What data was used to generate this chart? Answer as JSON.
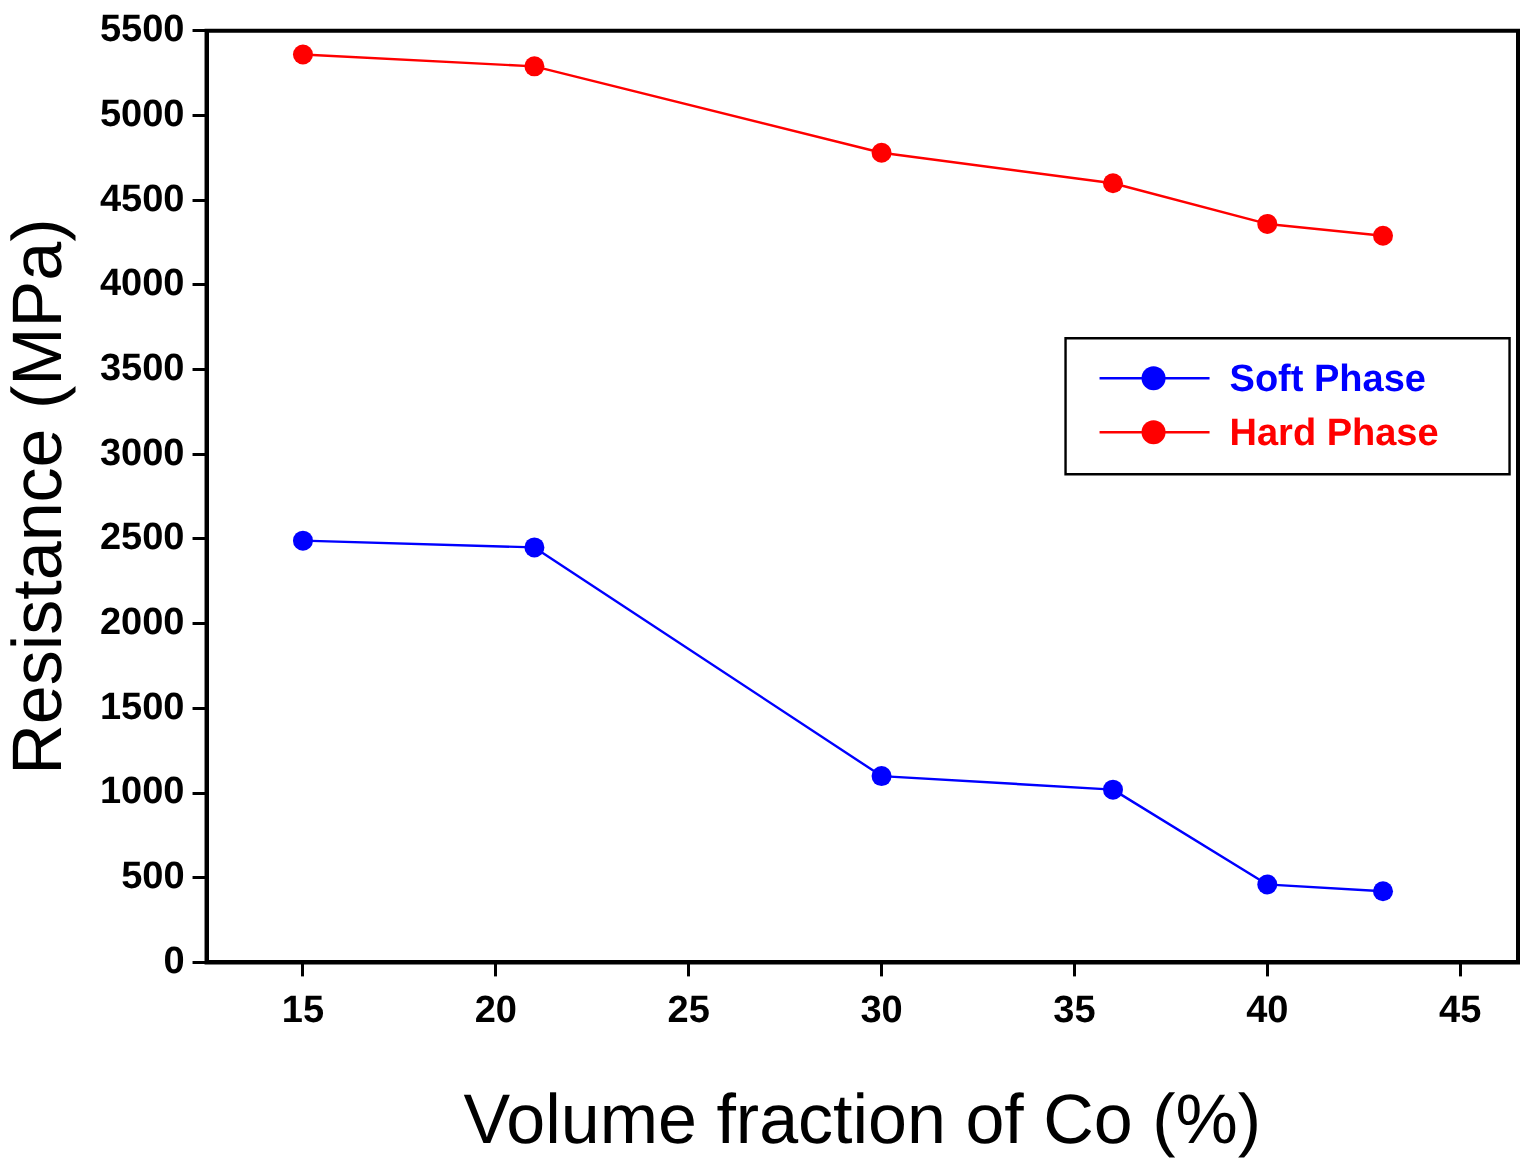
{
  "chart_data": {
    "type": "line",
    "xlabel": "Volume fraction of Co (%)",
    "ylabel": "Resistance (MPa)",
    "x": [
      15,
      21,
      30,
      36,
      40,
      43
    ],
    "series": [
      {
        "name": "Soft Phase",
        "color": "#0000ff",
        "values": [
          2490,
          2450,
          1100,
          1020,
          460,
          420
        ]
      },
      {
        "name": "Hard Phase",
        "color": "#ff0000",
        "values": [
          5360,
          5290,
          4780,
          4600,
          4360,
          4290
        ]
      }
    ],
    "xlim": [
      12.5,
      46.5
    ],
    "xticks": [
      15,
      20,
      25,
      30,
      35,
      40,
      45
    ],
    "ylim": [
      0,
      5500
    ],
    "yticks": [
      0,
      500,
      1000,
      1500,
      2000,
      2500,
      3000,
      3500,
      4000,
      4500,
      5000,
      5500
    ],
    "grid": false,
    "legend": "right",
    "marker": "circle",
    "line_style": "solid"
  }
}
